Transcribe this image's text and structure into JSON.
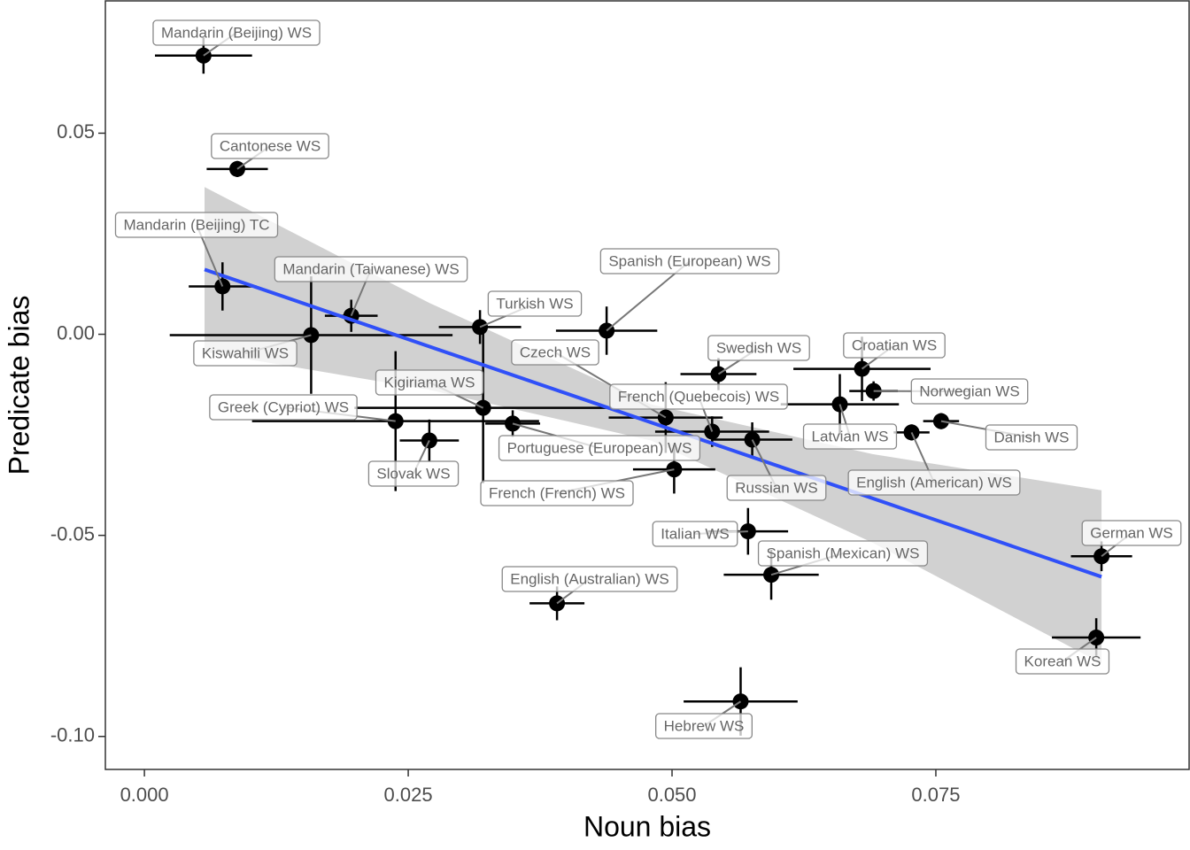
{
  "chart_data": {
    "type": "scatter",
    "xlabel": "Noun bias",
    "ylabel": "Predicate bias",
    "xlim": [
      -0.0037,
      0.099
    ],
    "ylim": [
      -0.1082,
      0.0829
    ],
    "xticks": [
      {
        "value": 0,
        "label": "0.000"
      },
      {
        "value": 0.025,
        "label": "0.025"
      },
      {
        "value": 0.05,
        "label": "0.050"
      },
      {
        "value": 0.075,
        "label": "0.075"
      }
    ],
    "yticks": [
      {
        "value": -0.1,
        "label": "-0.10"
      },
      {
        "value": -0.05,
        "label": "-0.05"
      },
      {
        "value": 0,
        "label": "0.00"
      },
      {
        "value": 0.05,
        "label": "0.05"
      }
    ],
    "grid": false,
    "color": "#000000",
    "labels": [
      "Mandarin (Beijing) WS",
      "Cantonese WS",
      "Mandarin (Beijing) TC",
      "Mandarin (Taiwanese) WS",
      "Kiswahili WS",
      "Turkish WS",
      "Spanish (European) WS",
      "Kigiriama WS",
      "Greek (Cypriot) WS",
      "Slovak WS",
      "Portuguese (European) WS",
      "Czech WS",
      "French (Quebecois) WS",
      "French (French) WS",
      "Russian WS",
      "Swedish WS",
      "Croatian WS",
      "Norwegian WS",
      "Latvian WS",
      "English (American) WS",
      "Danish WS",
      "Italian WS",
      "Spanish (Mexican) WS",
      "English (Australian) WS",
      "Hebrew WS",
      "German WS",
      "Korean WS"
    ],
    "x": [
      0.0056,
      0.0088,
      0.0074,
      0.0196,
      0.0158,
      0.0318,
      0.0438,
      0.0321,
      0.0238,
      0.027,
      0.0349,
      0.0494,
      0.0538,
      0.0502,
      0.0576,
      0.0544,
      0.068,
      0.0691,
      0.0659,
      0.0727,
      0.0755,
      0.0572,
      0.0594,
      0.0391,
      0.0565,
      0.0907,
      0.0902
    ],
    "values": [
      0.0693,
      0.0411,
      0.0119,
      0.0046,
      -0.0002,
      0.0018,
      0.0009,
      -0.0183,
      -0.0216,
      -0.0264,
      -0.0222,
      -0.0207,
      -0.0242,
      -0.0336,
      -0.0262,
      -0.0099,
      -0.0086,
      -0.0141,
      -0.0174,
      -0.0244,
      -0.0216,
      -0.049,
      -0.0598,
      -0.0669,
      -0.0913,
      -0.0552,
      -0.0754
    ],
    "x_error": [
      0.0046,
      0.0029,
      0.0032,
      0.0025,
      0.0134,
      0.0039,
      0.0048,
      0.0122,
      0.0136,
      0.0028,
      0.0026,
      0.0054,
      0.0054,
      0.0039,
      0.0038,
      0.0036,
      0.0065,
      0.0023,
      0.0056,
      0.0017,
      0.0017,
      0.0038,
      0.0045,
      0.0026,
      0.0054,
      0.0029,
      0.0042
    ],
    "y_error": [
      0.0045,
      0.002,
      0.006,
      0.004,
      0.0146,
      0.0042,
      0.006,
      0.0187,
      0.0174,
      0.0052,
      0.0033,
      0.0088,
      0.0038,
      0.006,
      0.0043,
      0.004,
      0.008,
      0.0024,
      0.0075,
      0.002,
      0.002,
      0.0058,
      0.0062,
      0.0042,
      0.0085,
      0.0037,
      0.0048
    ],
    "fit": {
      "color": "#3050f8",
      "x": [
        0.0057,
        0.0907
      ],
      "values": [
        0.0161,
        -0.0603
      ]
    },
    "band": {
      "color": "#cccccc",
      "x": [
        0.0057,
        0.027,
        0.048,
        0.069,
        0.0907
      ],
      "upper": [
        0.0366,
        0.0078,
        -0.0174,
        -0.0298,
        -0.0388
      ],
      "lower": [
        -0.0044,
        -0.0138,
        -0.0264,
        -0.0518,
        -0.0818
      ]
    }
  }
}
